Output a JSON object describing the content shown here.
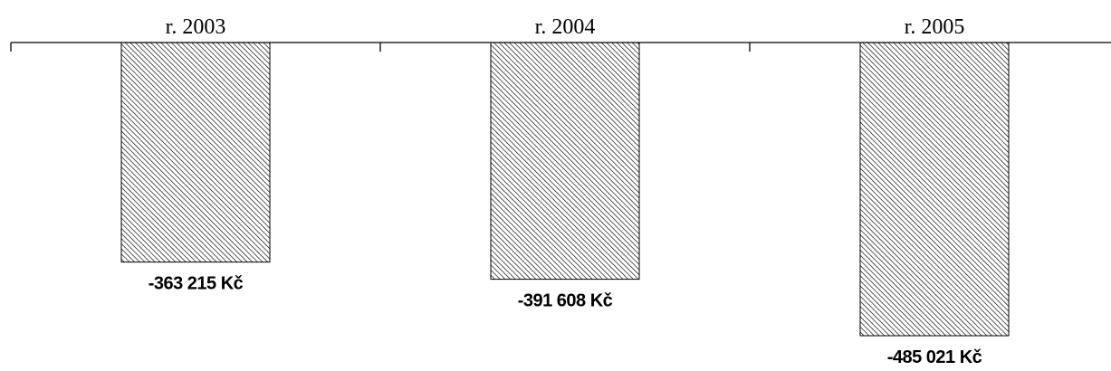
{
  "chart_data": {
    "type": "bar",
    "categories": [
      "r. 2003",
      "r. 2004",
      "r. 2005"
    ],
    "values": [
      -363215,
      -391608,
      -485021
    ],
    "value_labels": [
      "-363 215 Kč",
      "-391 608 Kč",
      "-485 021 Kč"
    ],
    "color": "#000000"
  }
}
